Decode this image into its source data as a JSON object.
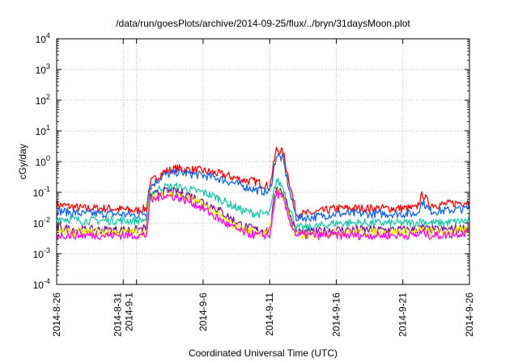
{
  "chart_data": {
    "type": "line",
    "title": "/data/run/goesPlots/archive/2014-09-25/flux/../bryn/31daysMoon.plot",
    "xlabel": "Coordinated Universal Time (UTC)",
    "ylabel": "cGy/day",
    "x_scale": "date",
    "y_scale": "log",
    "xlim": [
      "2014-08-26",
      "2014-09-26"
    ],
    "ylim": [
      0.0001,
      10000
    ],
    "grid": true,
    "legend": "none",
    "x_ticks": [
      {
        "value": "2014-08-26",
        "lines": [
          "2014-8-26"
        ]
      },
      {
        "value": "2014-08-31",
        "lines": [
          "2014-8-31",
          "2014-9-1"
        ]
      },
      {
        "value": "2014-09-01",
        "lines": []
      },
      {
        "value": "2014-09-06",
        "lines": [
          "2014-9-6"
        ]
      },
      {
        "value": "2014-09-11",
        "lines": [
          "2014-9-11"
        ]
      },
      {
        "value": "2014-09-16",
        "lines": [
          "2014-9-16"
        ]
      },
      {
        "value": "2014-09-21",
        "lines": [
          "2014-9-21"
        ]
      },
      {
        "value": "2014-09-26",
        "lines": [
          "2014-9-26"
        ]
      }
    ],
    "y_ticks": [
      {
        "value": 0.0001,
        "base": "10",
        "exp": "-4"
      },
      {
        "value": 0.001,
        "base": "10",
        "exp": "-3"
      },
      {
        "value": 0.01,
        "base": "10",
        "exp": "-2"
      },
      {
        "value": 0.1,
        "base": "10",
        "exp": "-1"
      },
      {
        "value": 1,
        "base": "10",
        "exp": "0"
      },
      {
        "value": 10,
        "base": "10",
        "exp": "1"
      },
      {
        "value": 100,
        "base": "10",
        "exp": "2"
      },
      {
        "value": 1000,
        "base": "10",
        "exp": "3"
      },
      {
        "value": 10000,
        "base": "10",
        "exp": "4"
      }
    ],
    "series": [
      {
        "color": "#ff0000",
        "x": [
          "2014-08-26",
          "2014-08-28",
          "2014-08-30",
          "2014-09-01",
          "2014-09-01T18:00",
          "2014-09-02",
          "2014-09-03",
          "2014-09-04",
          "2014-09-05",
          "2014-09-06",
          "2014-09-07",
          "2014-09-08",
          "2014-09-09",
          "2014-09-10",
          "2014-09-11",
          "2014-09-11T12:00",
          "2014-09-12",
          "2014-09-12T12:00",
          "2014-09-13",
          "2014-09-14",
          "2014-09-16",
          "2014-09-18",
          "2014-09-20",
          "2014-09-22",
          "2014-09-22T12:00",
          "2014-09-23",
          "2014-09-24",
          "2014-09-26"
        ],
        "values": [
          0.04,
          0.03,
          0.03,
          0.025,
          0.03,
          0.2,
          0.45,
          0.6,
          0.55,
          0.5,
          0.42,
          0.33,
          0.25,
          0.22,
          0.15,
          2.5,
          2.0,
          0.2,
          0.02,
          0.02,
          0.03,
          0.03,
          0.03,
          0.03,
          0.09,
          0.04,
          0.04,
          0.05
        ]
      },
      {
        "color": "#1464f0",
        "x": [
          "2014-08-26",
          "2014-08-28",
          "2014-08-30",
          "2014-09-01",
          "2014-09-01T18:00",
          "2014-09-02",
          "2014-09-03",
          "2014-09-04",
          "2014-09-05",
          "2014-09-06",
          "2014-09-07",
          "2014-09-08",
          "2014-09-09",
          "2014-09-10",
          "2014-09-11",
          "2014-09-11T12:00",
          "2014-09-12",
          "2014-09-12T12:00",
          "2014-09-13",
          "2014-09-14",
          "2014-09-16",
          "2014-09-18",
          "2014-09-20",
          "2014-09-22",
          "2014-09-22T12:00",
          "2014-09-23",
          "2014-09-24",
          "2014-09-26"
        ],
        "values": [
          0.025,
          0.02,
          0.02,
          0.018,
          0.022,
          0.15,
          0.35,
          0.45,
          0.4,
          0.35,
          0.3,
          0.22,
          0.16,
          0.12,
          0.1,
          1.6,
          1.2,
          0.1,
          0.015,
          0.015,
          0.02,
          0.02,
          0.02,
          0.02,
          0.05,
          0.025,
          0.025,
          0.03
        ]
      },
      {
        "color": "#1ec8aa",
        "x": [
          "2014-08-26",
          "2014-08-28",
          "2014-08-30",
          "2014-09-01",
          "2014-09-01T18:00",
          "2014-09-02",
          "2014-09-03",
          "2014-09-04",
          "2014-09-05",
          "2014-09-06",
          "2014-09-07",
          "2014-09-08",
          "2014-09-09",
          "2014-09-10",
          "2014-09-11",
          "2014-09-11T12:00",
          "2014-09-12",
          "2014-09-12T12:00",
          "2014-09-13",
          "2014-09-14",
          "2014-09-16",
          "2014-09-18",
          "2014-09-20",
          "2014-09-22",
          "2014-09-22T12:00",
          "2014-09-23",
          "2014-09-24",
          "2014-09-26"
        ],
        "values": [
          0.015,
          0.012,
          0.012,
          0.012,
          0.013,
          0.09,
          0.15,
          0.15,
          0.12,
          0.1,
          0.07,
          0.04,
          0.025,
          0.02,
          0.02,
          0.25,
          0.15,
          0.03,
          0.007,
          0.007,
          0.01,
          0.01,
          0.01,
          0.01,
          0.012,
          0.01,
          0.01,
          0.012
        ]
      },
      {
        "color": "#7d1496",
        "x": [
          "2014-08-26",
          "2014-08-28",
          "2014-08-30",
          "2014-09-01",
          "2014-09-01T18:00",
          "2014-09-02",
          "2014-09-03",
          "2014-09-04",
          "2014-09-05",
          "2014-09-06",
          "2014-09-07",
          "2014-09-08",
          "2014-09-09",
          "2014-09-10",
          "2014-09-11",
          "2014-09-11T12:00",
          "2014-09-12",
          "2014-09-12T12:00",
          "2014-09-13",
          "2014-09-14",
          "2014-09-16",
          "2014-09-18",
          "2014-09-20",
          "2014-09-22",
          "2014-09-22T12:00",
          "2014-09-23",
          "2014-09-24",
          "2014-09-26"
        ],
        "values": [
          0.007,
          0.006,
          0.006,
          0.006,
          0.007,
          0.07,
          0.11,
          0.1,
          0.08,
          0.05,
          0.03,
          0.015,
          0.008,
          0.006,
          0.006,
          0.16,
          0.1,
          0.02,
          0.005,
          0.005,
          0.006,
          0.006,
          0.006,
          0.006,
          0.007,
          0.006,
          0.006,
          0.007
        ]
      },
      {
        "color": "#f0f000",
        "x": [
          "2014-08-26",
          "2014-08-28",
          "2014-08-30",
          "2014-09-01",
          "2014-09-01T18:00",
          "2014-09-02",
          "2014-09-03",
          "2014-09-04",
          "2014-09-05",
          "2014-09-06",
          "2014-09-07",
          "2014-09-08",
          "2014-09-09",
          "2014-09-10",
          "2014-09-11",
          "2014-09-11T12:00",
          "2014-09-12",
          "2014-09-12T12:00",
          "2014-09-13",
          "2014-09-14",
          "2014-09-16",
          "2014-09-18",
          "2014-09-20",
          "2014-09-22",
          "2014-09-22T12:00",
          "2014-09-23",
          "2014-09-24",
          "2014-09-26"
        ],
        "values": [
          0.005,
          0.005,
          0.005,
          0.005,
          0.005,
          0.06,
          0.09,
          0.08,
          0.06,
          0.04,
          0.02,
          0.01,
          0.006,
          0.005,
          0.005,
          0.12,
          0.08,
          0.015,
          0.004,
          0.004,
          0.005,
          0.005,
          0.005,
          0.005,
          0.006,
          0.005,
          0.005,
          0.006
        ]
      },
      {
        "color": "#ff00e6",
        "x": [
          "2014-08-26",
          "2014-08-28",
          "2014-08-30",
          "2014-09-01",
          "2014-09-01T18:00",
          "2014-09-02",
          "2014-09-03",
          "2014-09-04",
          "2014-09-05",
          "2014-09-06",
          "2014-09-07",
          "2014-09-08",
          "2014-09-09",
          "2014-09-10",
          "2014-09-11",
          "2014-09-11T12:00",
          "2014-09-12",
          "2014-09-12T12:00",
          "2014-09-13",
          "2014-09-14",
          "2014-09-16",
          "2014-09-18",
          "2014-09-20",
          "2014-09-22",
          "2014-09-22T12:00",
          "2014-09-23",
          "2014-09-24",
          "2014-09-26"
        ],
        "values": [
          0.004,
          0.004,
          0.004,
          0.004,
          0.004,
          0.05,
          0.08,
          0.07,
          0.05,
          0.03,
          0.015,
          0.008,
          0.005,
          0.004,
          0.004,
          0.1,
          0.06,
          0.012,
          0.004,
          0.004,
          0.004,
          0.004,
          0.004,
          0.004,
          0.005,
          0.004,
          0.004,
          0.005
        ]
      }
    ]
  }
}
